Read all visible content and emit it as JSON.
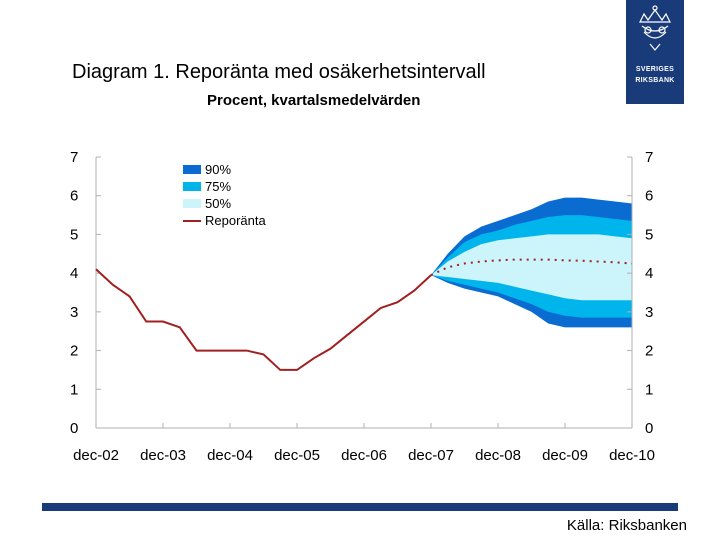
{
  "header": {
    "title": "Diagram 1. Reporänta med osäkerhetsintervall",
    "subtitle": "Procent, kvartalsmedelvärden",
    "logo_lines": [
      "SVERIGES",
      "RIKSBANK"
    ]
  },
  "footer": {
    "source": "Källa: Riksbanken"
  },
  "colors": {
    "band90": "#0a6cd0",
    "band75": "#00b4ec",
    "band50": "#ccf4fb",
    "line": "#a02020",
    "axis": "#b0b0b0",
    "brand": "#1a3b7a"
  },
  "chart_data": {
    "type": "area",
    "title": "Diagram 1. Reporänta med osäkerhetsintervall",
    "subtitle": "Procent, kvartalsmedelvärden",
    "ylim": [
      0,
      7
    ],
    "yticks": [
      "0",
      "1",
      "2",
      "3",
      "4",
      "5",
      "6",
      "7"
    ],
    "xtick_labels": [
      "dec-02",
      "dec-03",
      "dec-04",
      "dec-05",
      "dec-06",
      "dec-07",
      "dec-08",
      "dec-09",
      "dec-10"
    ],
    "x_unit": "quarter",
    "grid": false,
    "legend_position": "top-left",
    "legend": [
      "90%",
      "75%",
      "50%",
      "Reporänta"
    ],
    "series": [
      {
        "name": "Reporänta",
        "x": [
          0,
          0.25,
          0.5,
          0.75,
          1,
          1.25,
          1.5,
          1.75,
          2,
          2.25,
          2.5,
          2.75,
          3,
          3.25,
          3.5,
          3.75,
          4,
          4.25,
          4.5,
          4.75,
          5
        ],
        "values": [
          4.1,
          3.7,
          3.4,
          2.75,
          2.75,
          2.6,
          2.0,
          2.0,
          2.0,
          2.0,
          1.9,
          1.5,
          1.5,
          1.8,
          2.05,
          2.4,
          2.75,
          3.1,
          3.25,
          3.55,
          3.95
        ]
      },
      {
        "name": "Prognos",
        "x": [
          5,
          5.25,
          5.5,
          5.75,
          6,
          6.25,
          6.5,
          6.75,
          7,
          7.25,
          7.5,
          7.75,
          8
        ],
        "values": [
          3.95,
          4.15,
          4.25,
          4.3,
          4.33,
          4.35,
          4.35,
          4.35,
          4.33,
          4.32,
          4.3,
          4.28,
          4.25
        ]
      },
      {
        "name": "90%",
        "x": [
          5,
          5.25,
          5.5,
          5.75,
          6,
          6.25,
          6.5,
          6.75,
          7,
          7.25,
          7.5,
          7.75,
          8
        ],
        "lower": [
          3.95,
          3.75,
          3.6,
          3.5,
          3.4,
          3.2,
          3.0,
          2.7,
          2.6,
          2.6,
          2.6,
          2.6,
          2.6
        ],
        "upper": [
          3.95,
          4.5,
          4.95,
          5.2,
          5.35,
          5.5,
          5.65,
          5.85,
          5.95,
          5.95,
          5.9,
          5.85,
          5.8
        ]
      },
      {
        "name": "75%",
        "x": [
          5,
          5.25,
          5.5,
          5.75,
          6,
          6.25,
          6.5,
          6.75,
          7,
          7.25,
          7.5,
          7.75,
          8
        ],
        "lower": [
          3.95,
          3.8,
          3.7,
          3.6,
          3.5,
          3.35,
          3.2,
          3.0,
          2.9,
          2.85,
          2.85,
          2.85,
          2.85
        ],
        "upper": [
          3.95,
          4.4,
          4.8,
          5.0,
          5.1,
          5.25,
          5.35,
          5.45,
          5.5,
          5.5,
          5.45,
          5.4,
          5.35
        ]
      },
      {
        "name": "50%",
        "x": [
          5,
          5.25,
          5.5,
          5.75,
          6,
          6.25,
          6.5,
          6.75,
          7,
          7.25,
          7.5,
          7.75,
          8
        ],
        "lower": [
          3.95,
          3.9,
          3.85,
          3.8,
          3.75,
          3.65,
          3.55,
          3.45,
          3.35,
          3.3,
          3.3,
          3.3,
          3.3
        ],
        "upper": [
          3.95,
          4.3,
          4.55,
          4.75,
          4.85,
          4.9,
          4.95,
          5.0,
          5.0,
          5.0,
          5.0,
          4.95,
          4.9
        ]
      }
    ]
  }
}
